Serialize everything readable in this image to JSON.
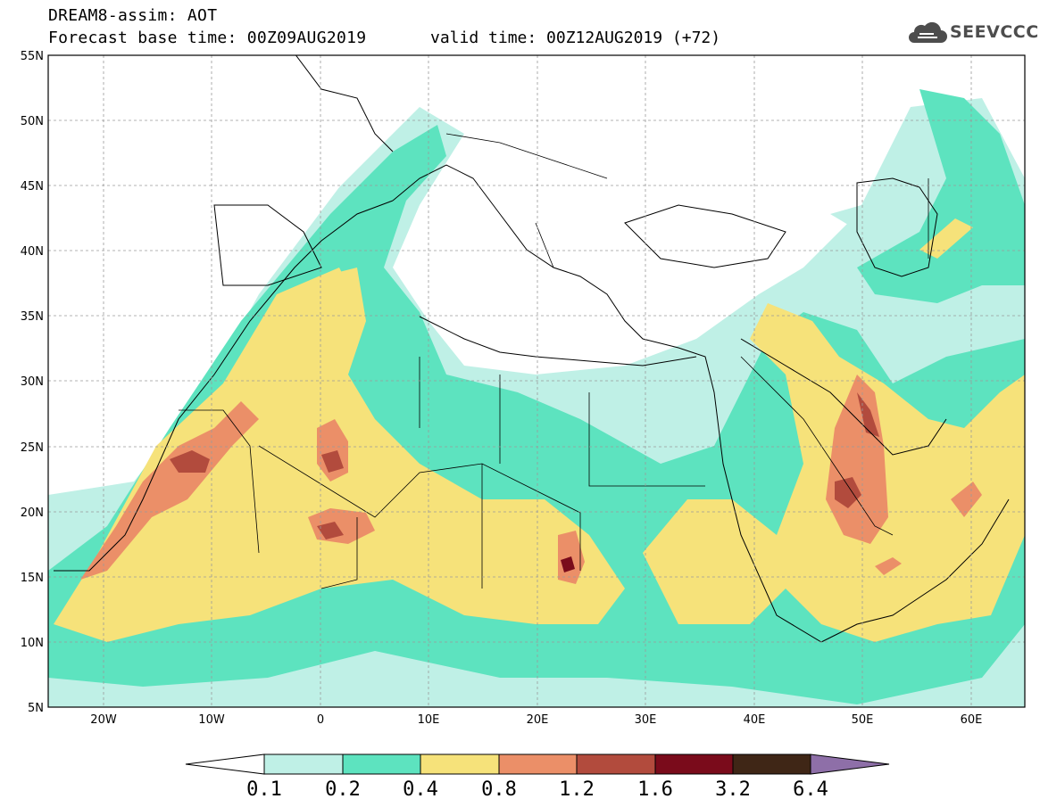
{
  "header": {
    "title": "DREAM8-assim: AOT",
    "base_time": "Forecast base time: 00Z09AUG2019",
    "valid_time": "valid time: 00Z12AUG2019 (+72)"
  },
  "logo": {
    "text": "SEEVCCC",
    "icon": "cloud-icon"
  },
  "map": {
    "lon_range": [
      -25,
      65
    ],
    "lat_range": [
      5,
      55
    ],
    "lat_ticks": [
      "55N",
      "50N",
      "45N",
      "40N",
      "35N",
      "30N",
      "25N",
      "20N",
      "15N",
      "10N",
      "5N"
    ],
    "lon_ticks": [
      "20W",
      "10W",
      "0",
      "10E",
      "20E",
      "30E",
      "40E",
      "50E",
      "60E"
    ],
    "grid": "dashed"
  },
  "colorbar": {
    "labels": [
      "0.1",
      "0.2",
      "0.4",
      "0.8",
      "1.2",
      "1.6",
      "3.2",
      "6.4"
    ],
    "colors": [
      "#bff0e6",
      "#5de3bf",
      "#f6e27a",
      "#eb8f68",
      "#b24b3d",
      "#7a0b1b",
      "#3f2616",
      "#8e6fa8"
    ],
    "under_color": "#ffffff",
    "over_color": "#8e6fa8"
  }
}
